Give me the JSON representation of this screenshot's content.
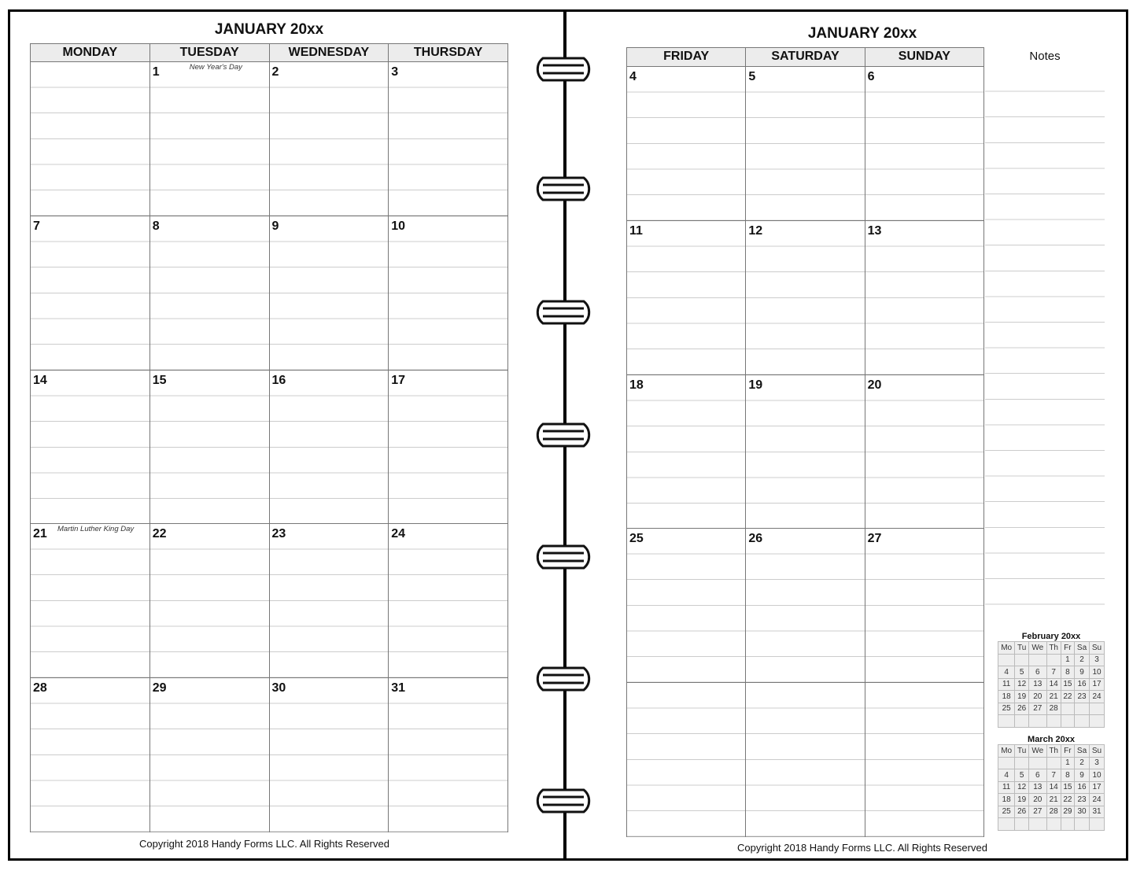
{
  "left_page": {
    "title": "JANUARY 20xx",
    "days": [
      "MONDAY",
      "TUESDAY",
      "WEDNESDAY",
      "THURSDAY"
    ],
    "weeks": [
      [
        "",
        "1",
        "2",
        "3"
      ],
      [
        "7",
        "8",
        "9",
        "10"
      ],
      [
        "14",
        "15",
        "16",
        "17"
      ],
      [
        "21",
        "22",
        "23",
        "24"
      ],
      [
        "28",
        "29",
        "30",
        "31"
      ]
    ],
    "holidays": [
      {
        "week": 0,
        "day": 1,
        "text": "New Year's Day"
      },
      {
        "week": 3,
        "day": 0,
        "text": "Martin Luther King Day"
      }
    ],
    "copyright": "Copyright 2018 Handy Forms LLC. All Rights Reserved"
  },
  "right_page": {
    "title": "JANUARY 20xx",
    "days": [
      "FRIDAY",
      "SATURDAY",
      "SUNDAY"
    ],
    "weeks": [
      [
        "4",
        "5",
        "6"
      ],
      [
        "11",
        "12",
        "13"
      ],
      [
        "18",
        "19",
        "20"
      ],
      [
        "25",
        "26",
        "27"
      ],
      [
        "",
        "",
        ""
      ]
    ],
    "notes_label": "Notes",
    "copyright": "Copyright 2018 Handy Forms LLC. All Rights Reserved",
    "mini_calendars": [
      {
        "title": "February 20xx",
        "headers": [
          "Mo",
          "Tu",
          "We",
          "Th",
          "Fr",
          "Sa",
          "Su"
        ],
        "rows": [
          [
            "",
            "",
            "",
            "",
            "1",
            "2",
            "3"
          ],
          [
            "4",
            "5",
            "6",
            "7",
            "8",
            "9",
            "10"
          ],
          [
            "11",
            "12",
            "13",
            "14",
            "15",
            "16",
            "17"
          ],
          [
            "18",
            "19",
            "20",
            "21",
            "22",
            "23",
            "24"
          ],
          [
            "25",
            "26",
            "27",
            "28",
            "",
            "",
            ""
          ],
          [
            "",
            "",
            "",
            "",
            "",
            "",
            ""
          ]
        ]
      },
      {
        "title": "March 20xx",
        "headers": [
          "Mo",
          "Tu",
          "We",
          "Th",
          "Fr",
          "Sa",
          "Su"
        ],
        "rows": [
          [
            "",
            "",
            "",
            "",
            "1",
            "2",
            "3"
          ],
          [
            "4",
            "5",
            "6",
            "7",
            "8",
            "9",
            "10"
          ],
          [
            "11",
            "12",
            "13",
            "14",
            "15",
            "16",
            "17"
          ],
          [
            "18",
            "19",
            "20",
            "21",
            "22",
            "23",
            "24"
          ],
          [
            "25",
            "26",
            "27",
            "28",
            "29",
            "30",
            "31"
          ],
          [
            "",
            "",
            "",
            "",
            "",
            "",
            ""
          ]
        ]
      }
    ]
  }
}
